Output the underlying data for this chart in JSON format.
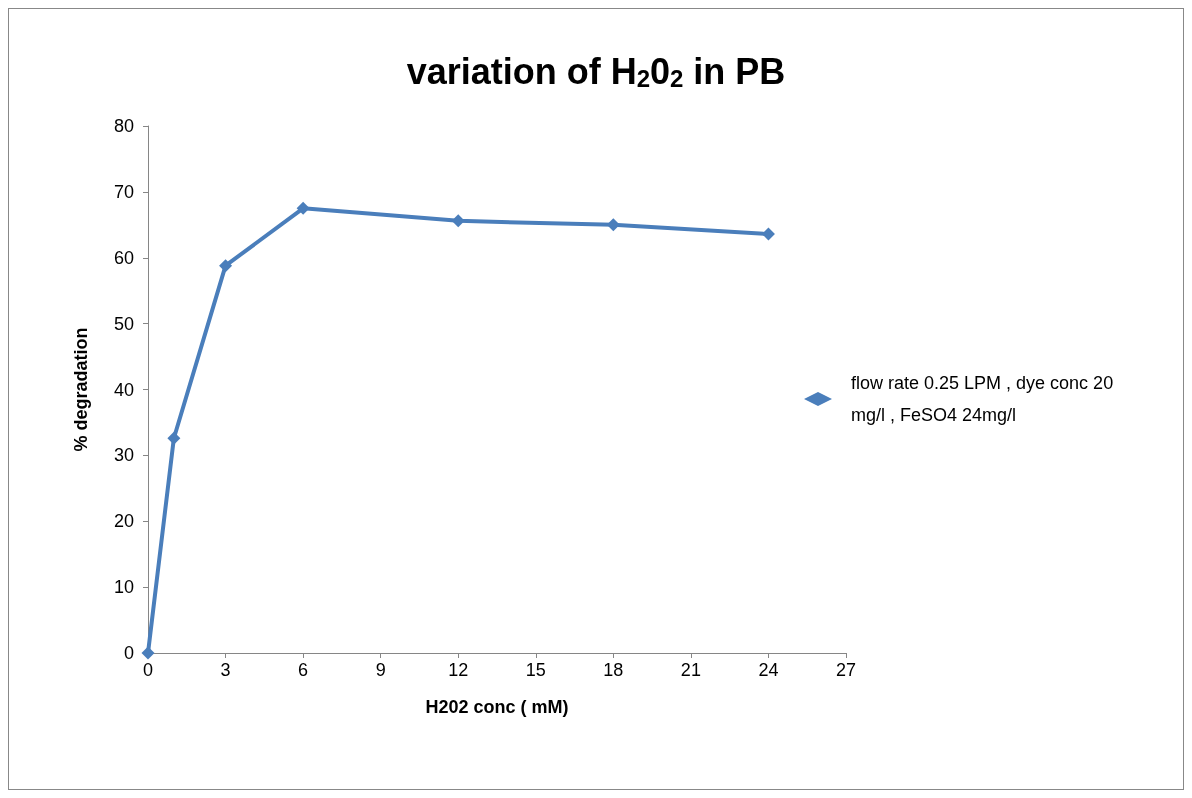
{
  "chart_data": {
    "type": "line",
    "title": "variation of H$_{2}$0$_{2}$ in PB",
    "xlabel": "H202 conc ( mM)",
    "ylabel": "% degradation",
    "x": [
      0,
      1,
      3,
      6,
      12,
      18,
      24
    ],
    "series": [
      {
        "name": "flow rate 0.25 LPM , dye conc 20 mg/l , FeSO4 24mg/l",
        "color": "#4a7ebb",
        "values": [
          0,
          32.6,
          58.8,
          67.5,
          65.6,
          65.0,
          63.6
        ]
      }
    ],
    "xlim": [
      0,
      27
    ],
    "xticks": [
      0,
      3,
      6,
      9,
      12,
      15,
      18,
      21,
      24,
      27
    ],
    "ylim": [
      0,
      80
    ],
    "yticks": [
      0,
      10,
      20,
      30,
      40,
      50,
      60,
      70,
      80
    ],
    "grid": false,
    "legend": "right",
    "marker": "diamond",
    "line_style": "solid"
  }
}
